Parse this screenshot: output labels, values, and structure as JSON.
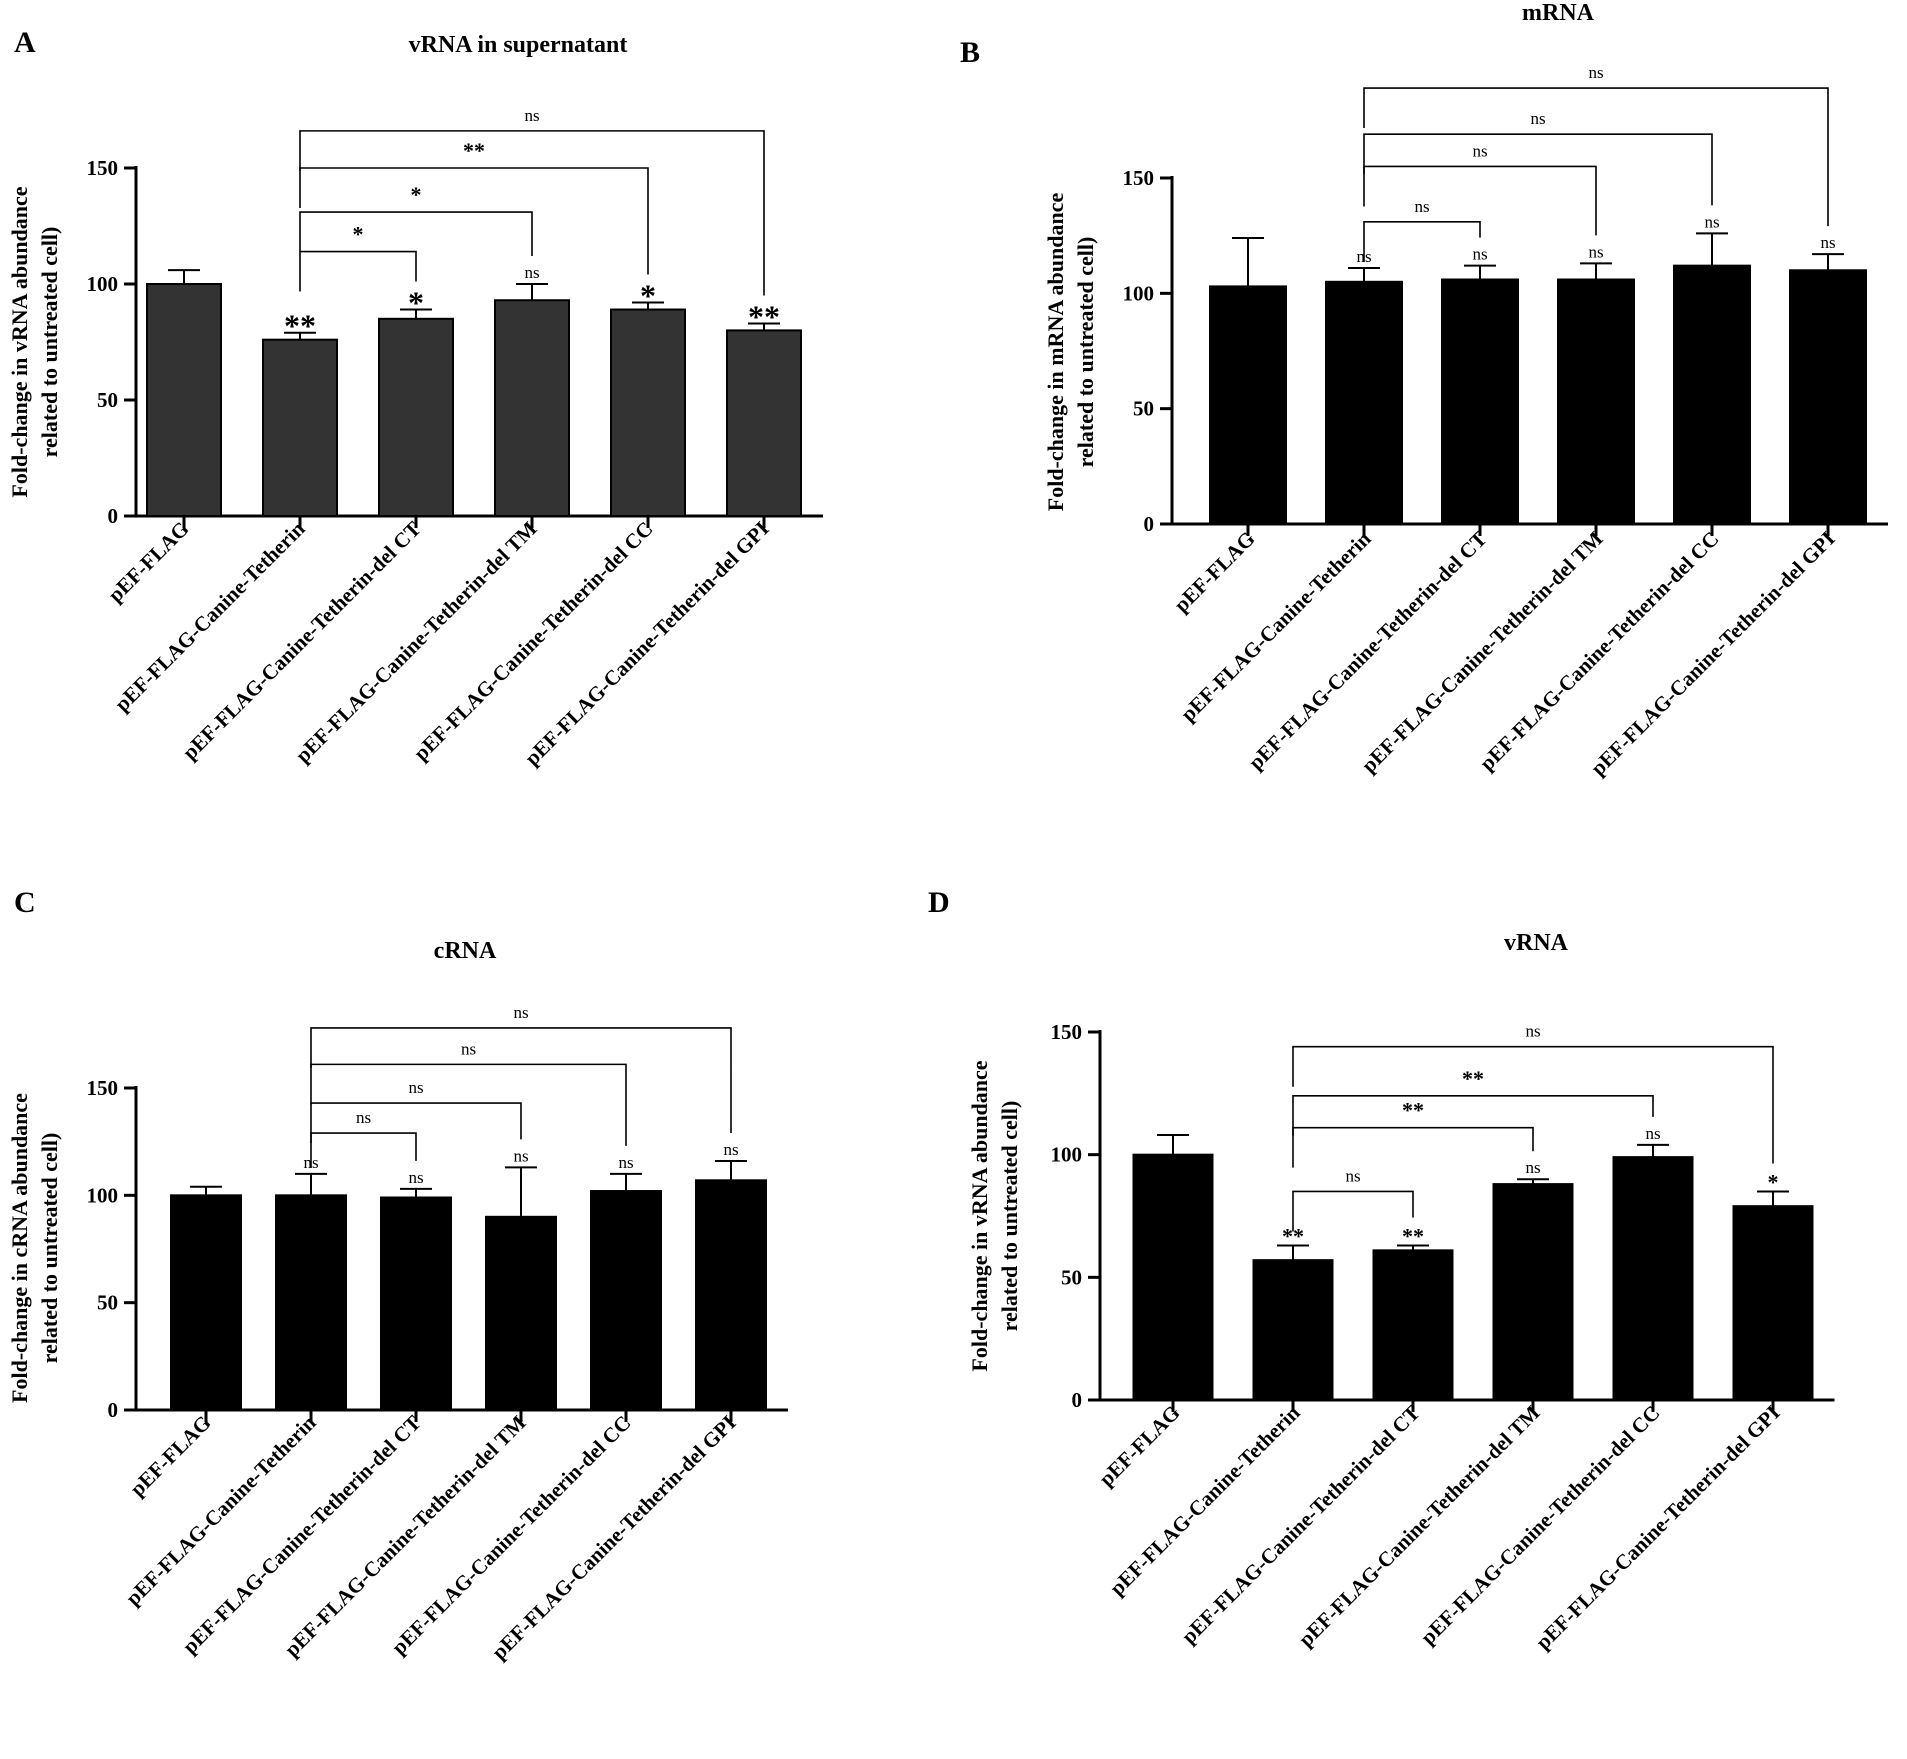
{
  "chart_data": [
    {
      "panel": "A",
      "type": "bar",
      "title": "vRNA in supernatant",
      "ylabel": [
        "Fold-change in vRNA abundance",
        "related to untreated cell)"
      ],
      "ylim": [
        0,
        150
      ],
      "yticks": [
        0,
        50,
        100,
        150
      ],
      "bar_color": "#333333",
      "categories": [
        "pEF-FLAG",
        "pEF-FLAG-Canine-Tetherin",
        "pEF-FLAG-Canine-Tetherin-del CT",
        "pEF-FLAG-Canine-Tetherin-del TM",
        "pEF-FLAG-Canine-Tetherin-del CC",
        "pEF-FLAG-Canine-Tetherin-del GPI"
      ],
      "values": [
        100,
        76,
        85,
        93,
        89,
        80
      ],
      "errors": [
        6,
        3,
        4,
        7,
        3,
        3
      ],
      "bar_marks": [
        "",
        "**",
        "*",
        "ns",
        "*",
        "**"
      ],
      "brackets": [
        {
          "from": 1,
          "to": 2,
          "y": 114,
          "label": "*"
        },
        {
          "from": 1,
          "to": 3,
          "y": 131,
          "label": "*"
        },
        {
          "from": 1,
          "to": 4,
          "y": 150,
          "label": "**"
        },
        {
          "from": 1,
          "to": 5,
          "y": 166,
          "label": "ns"
        }
      ]
    },
    {
      "panel": "B",
      "type": "bar",
      "title": "mRNA",
      "ylabel": [
        "Fold-change in mRNA abundance",
        "related to untreated cell)"
      ],
      "ylim": [
        0,
        150
      ],
      "yticks": [
        0,
        50,
        100,
        150
      ],
      "bar_color": "#000000",
      "categories": [
        "pEF-FLAG",
        "pEF-FLAG-Canine-Tetherin",
        "pEF-FLAG-Canine-Tetherin-del CT",
        "pEF-FLAG-Canine-Tetherin-del TM",
        "pEF-FLAG-Canine-Tetherin-del CC",
        "pEF-FLAG-Canine-Tetherin-del GPI"
      ],
      "values": [
        103,
        105,
        106,
        106,
        112,
        110
      ],
      "errors": [
        21,
        6,
        6,
        7,
        14,
        7
      ],
      "bar_marks": [
        "",
        "ns",
        "ns",
        "ns",
        "ns",
        "ns"
      ],
      "brackets": [
        {
          "from": 1,
          "to": 2,
          "y": 131,
          "label": "ns"
        },
        {
          "from": 1,
          "to": 3,
          "y": 155,
          "label": "ns"
        },
        {
          "from": 1,
          "to": 4,
          "y": 169,
          "label": "ns"
        },
        {
          "from": 1,
          "to": 5,
          "y": 189,
          "label": "ns"
        }
      ]
    },
    {
      "panel": "C",
      "type": "bar",
      "title": "cRNA",
      "ylabel": [
        "Fold-change in cRNA abundance",
        "related to untreated cell)"
      ],
      "ylim": [
        0,
        150
      ],
      "yticks": [
        0,
        50,
        100,
        150
      ],
      "bar_color": "#000000",
      "categories": [
        "pEF-FLAG",
        "pEF-FLAG-Canine-Tetherin",
        "pEF-FLAG-Canine-Tetherin-del CT",
        "pEF-FLAG-Canine-Tetherin-del TM",
        "pEF-FLAG-Canine-Tetherin-del CC",
        "pEF-FLAG-Canine-Tetherin-del GPI"
      ],
      "values": [
        100,
        100,
        99,
        90,
        102,
        107
      ],
      "errors": [
        4,
        10,
        4,
        23,
        8,
        9
      ],
      "bar_marks": [
        "",
        "ns",
        "ns",
        "ns",
        "ns",
        "ns"
      ],
      "brackets": [
        {
          "from": 1,
          "to": 2,
          "y": 129,
          "label": "ns"
        },
        {
          "from": 1,
          "to": 3,
          "y": 143,
          "label": "ns"
        },
        {
          "from": 1,
          "to": 4,
          "y": 161,
          "label": "ns"
        },
        {
          "from": 1,
          "to": 5,
          "y": 178,
          "label": "ns"
        }
      ]
    },
    {
      "panel": "D",
      "type": "bar",
      "title": "vRNA",
      "ylabel": [
        "Fold-change in vRNA abundance",
        "related to untreated cell)"
      ],
      "ylim": [
        0,
        150
      ],
      "yticks": [
        0,
        50,
        100,
        150
      ],
      "bar_color": "#000000",
      "categories": [
        "pEF-FLAG",
        "pEF-FLAG-Canine-Tetherin",
        "pEF-FLAG-Canine-Tetherin-del CT",
        "pEF-FLAG-Canine-Tetherin-del TM",
        "pEF-FLAG-Canine-Tetherin-del CC",
        "pEF-FLAG-Canine-Tetherin-del GPI"
      ],
      "values": [
        100,
        57,
        61,
        88,
        99,
        79
      ],
      "errors": [
        8,
        6,
        2,
        2,
        5,
        6
      ],
      "bar_marks": [
        "",
        "**",
        "**",
        "ns",
        "ns",
        "*"
      ],
      "brackets": [
        {
          "from": 1,
          "to": 2,
          "y": 85,
          "label": "ns"
        },
        {
          "from": 1,
          "to": 3,
          "y": 111,
          "label": "**"
        },
        {
          "from": 1,
          "to": 4,
          "y": 124,
          "label": "**"
        },
        {
          "from": 1,
          "to": 5,
          "y": 144,
          "label": "ns"
        }
      ]
    }
  ]
}
